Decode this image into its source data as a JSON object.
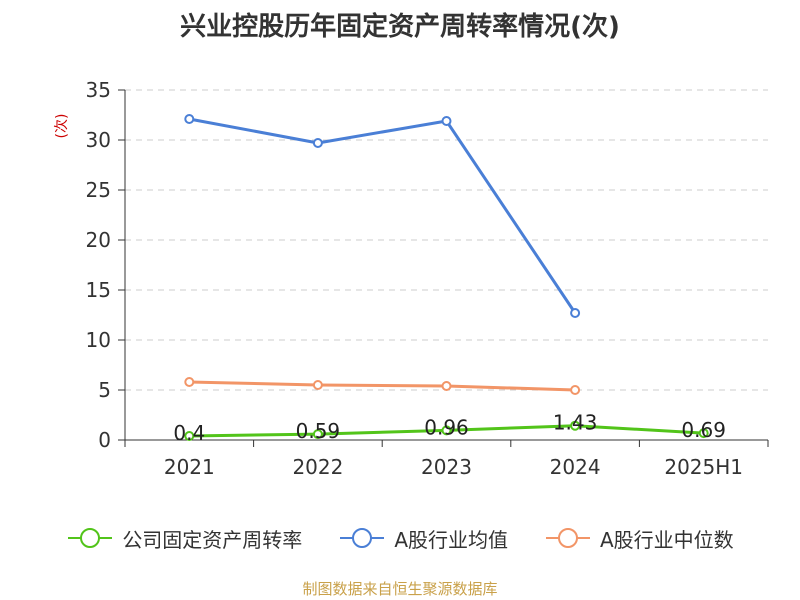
{
  "title": "兴业控股历年固定资产周转率情况(次)",
  "source": "制图数据来自恒生聚源数据库",
  "chart_data": {
    "type": "line",
    "title": "兴业控股历年固定资产周转率情况(次)",
    "ylabel": "(次)",
    "xlabel": "",
    "ylim": [
      0,
      35
    ],
    "yticks": [
      "0",
      "5",
      "10",
      "15",
      "20",
      "25",
      "30",
      "35"
    ],
    "categories": [
      "2021",
      "2022",
      "2023",
      "2024",
      "2025H1"
    ],
    "grid": true,
    "legend_position": "bottom",
    "series": [
      {
        "name": "公司固定资产周转率",
        "color": "#52c41a",
        "values": [
          0.4,
          0.59,
          0.96,
          1.43,
          0.69
        ],
        "labels": [
          "0.4",
          "0.59",
          "0.96",
          "1.43",
          "0.69"
        ]
      },
      {
        "name": "A股行业均值",
        "color": "#4a7fd6",
        "values": [
          32.1,
          29.7,
          31.9,
          12.7,
          null
        ]
      },
      {
        "name": "A股行业中位数",
        "color": "#f29567",
        "values": [
          5.8,
          5.5,
          5.4,
          5.0,
          null
        ]
      }
    ]
  }
}
